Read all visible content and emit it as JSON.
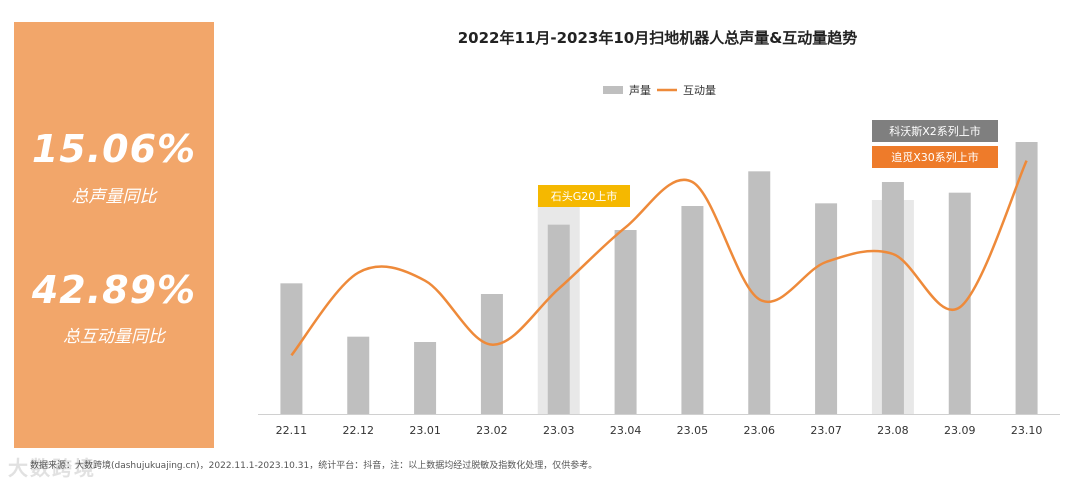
{
  "kpi": [
    {
      "value": "15.06%",
      "label": "总声量同比"
    },
    {
      "value": "42.89%",
      "label": "总互动量同比"
    }
  ],
  "colors": {
    "panel": "#F2A66A",
    "bar": "#BFBFBF",
    "highlight_band": "#E8E8E8",
    "line": "#EE8A3A",
    "tag_yellow": "#F5B800",
    "tag_gray": "#7F7F7F",
    "tag_orange": "#EE7B2A"
  },
  "chart_data": {
    "type": "bar",
    "title": "2022年11月-2023年10月扫地机器人总声量&互动量趋势",
    "categories": [
      "22.11",
      "22.12",
      "23.01",
      "23.02",
      "23.03",
      "23.04",
      "23.05",
      "23.06",
      "23.07",
      "23.08",
      "23.09",
      "23.10"
    ],
    "legend": {
      "placement": "top-center"
    },
    "series": [
      {
        "name": "声量",
        "type": "bar",
        "values": [
          49,
          29,
          27,
          45,
          71,
          69,
          78,
          91,
          79,
          87,
          83,
          102
        ]
      },
      {
        "name": "互动量",
        "type": "line",
        "values": [
          22,
          53,
          50,
          26,
          47,
          70,
          87,
          43,
          57,
          60,
          40,
          95
        ]
      }
    ],
    "ylim": [
      0,
      105
    ],
    "grid": false,
    "highlights": [
      "23.03",
      "23.08"
    ],
    "annotations": [
      {
        "category": "23.03",
        "text": "石头G20上市",
        "style": "yellow"
      },
      {
        "category": "23.08",
        "text": "科沃斯X2系列上市",
        "style": "gray"
      },
      {
        "category": "23.08",
        "text": "追觅X30系列上市",
        "style": "orange"
      }
    ]
  },
  "footer": {
    "text": "数据来源：大数跨境(dashujukuajing.cn)，2022.11.1-2023.10.31，统计平台：抖音，注：以上数据均经过脱敏及指数化处理，仅供参考。"
  },
  "watermark": "大数跨境"
}
